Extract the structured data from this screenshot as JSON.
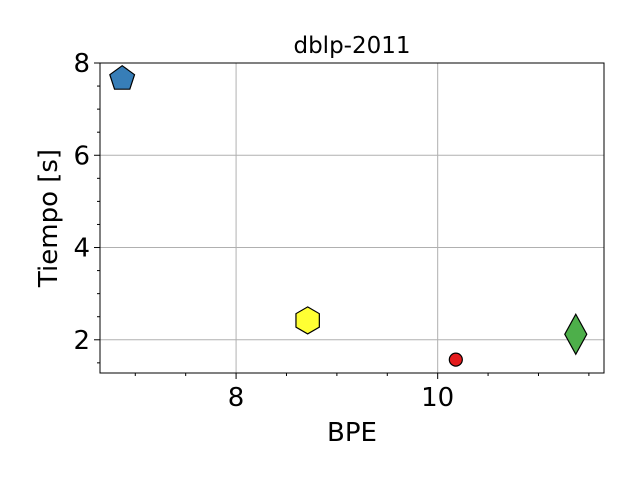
{
  "chart_data": {
    "type": "scatter",
    "title": "dblp-2011",
    "xlabel": "BPE",
    "ylabel": "Tiempo [s]",
    "xlim": [
      6.65,
      11.65
    ],
    "ylim": [
      1.28,
      8.0
    ],
    "xticks": [
      8,
      10
    ],
    "yticks": [
      2,
      4,
      6,
      8
    ],
    "xticks_minor_step": 0.5,
    "yticks_minor_step": 0.5,
    "grid": true,
    "points": [
      {
        "x": 6.87,
        "y": 7.66,
        "marker": "pentagon",
        "color": "#377eb8"
      },
      {
        "x": 8.71,
        "y": 2.42,
        "marker": "hexagon",
        "color": "#ffff33"
      },
      {
        "x": 10.18,
        "y": 1.57,
        "marker": "circle",
        "color": "#e41a1c"
      },
      {
        "x": 11.37,
        "y": 2.12,
        "marker": "diamond",
        "color": "#4daf4a"
      }
    ]
  }
}
